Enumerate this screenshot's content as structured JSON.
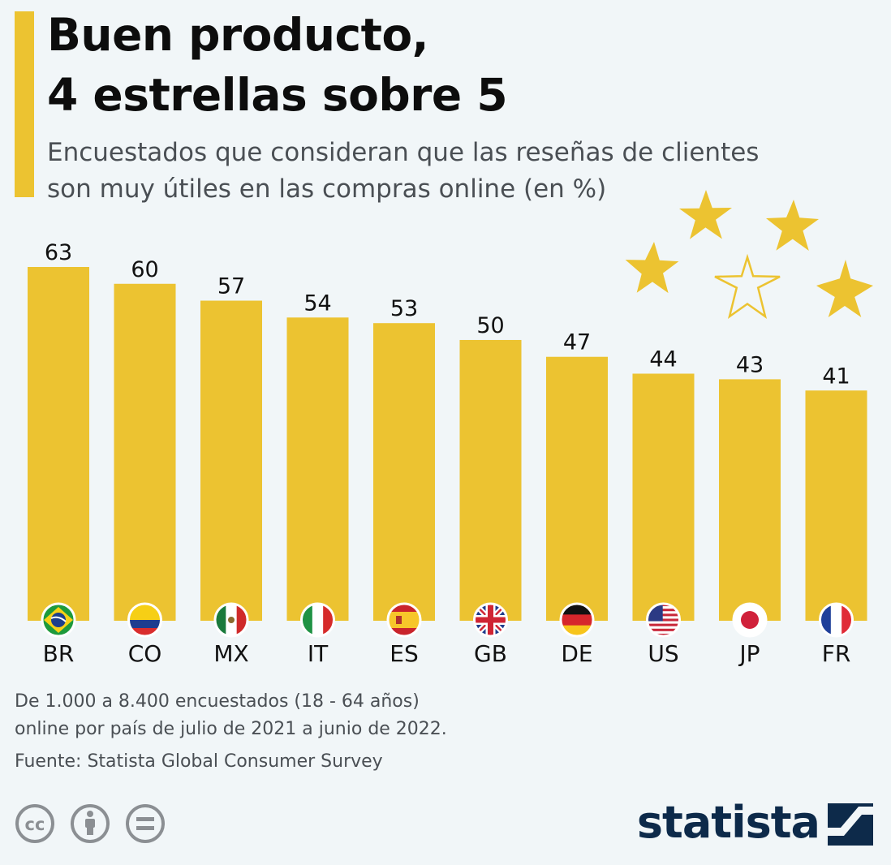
{
  "title_lines": [
    "Buen producto,",
    "4 estrellas sobre 5"
  ],
  "subtitle_lines": [
    "Encuestados que consideran que las reseñas de clientes",
    "son muy útiles en las compras online (en %)"
  ],
  "note_lines": [
    "De 1.000 a 8.400 encuestados (18 - 64 años)",
    "online por país de julio de 2021 a junio de 2022."
  ],
  "source": "Fuente: Statista Global Consumer Survey",
  "brand": "statista",
  "colors": {
    "bar": "#ecc331",
    "background": "#f1f6f8",
    "brand": "#0d2a4a",
    "text": "#111111",
    "muted": "#4a4f54"
  },
  "chart_data": {
    "type": "bar",
    "categories": [
      "BR",
      "CO",
      "MX",
      "IT",
      "ES",
      "GB",
      "DE",
      "US",
      "JP",
      "FR"
    ],
    "values": [
      63,
      60,
      57,
      54,
      53,
      50,
      47,
      44,
      43,
      41
    ],
    "flags": [
      "brazil-flag-icon",
      "colombia-flag-icon",
      "mexico-flag-icon",
      "italy-flag-icon",
      "spain-flag-icon",
      "uk-flag-icon",
      "germany-flag-icon",
      "usa-flag-icon",
      "japan-flag-icon",
      "france-flag-icon"
    ],
    "title": "Buen producto, 4 estrellas sobre 5",
    "ylim": [
      0,
      63
    ],
    "grid": false
  }
}
